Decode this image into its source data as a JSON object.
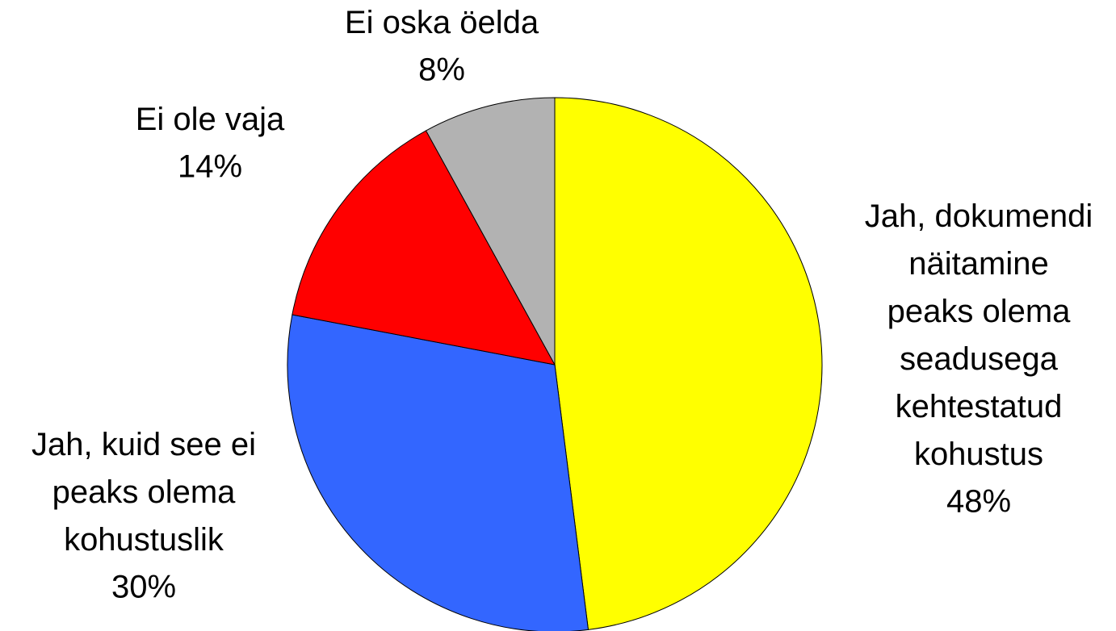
{
  "chart_data": {
    "type": "pie",
    "categories": [
      "Jah, dokumendi näitamine peaks olema seadusega kehtestatud kohustus",
      "Jah, kuid see ei peaks olema kohustuslik",
      "Ei ole vaja",
      "Ei oska öelda"
    ],
    "values": [
      48,
      30,
      14,
      8
    ],
    "value_labels": [
      "48%",
      "30%",
      "14%",
      "8%"
    ],
    "colors": [
      "#ffff00",
      "#3366ff",
      "#ff0000",
      "#b2b2b2"
    ]
  }
}
